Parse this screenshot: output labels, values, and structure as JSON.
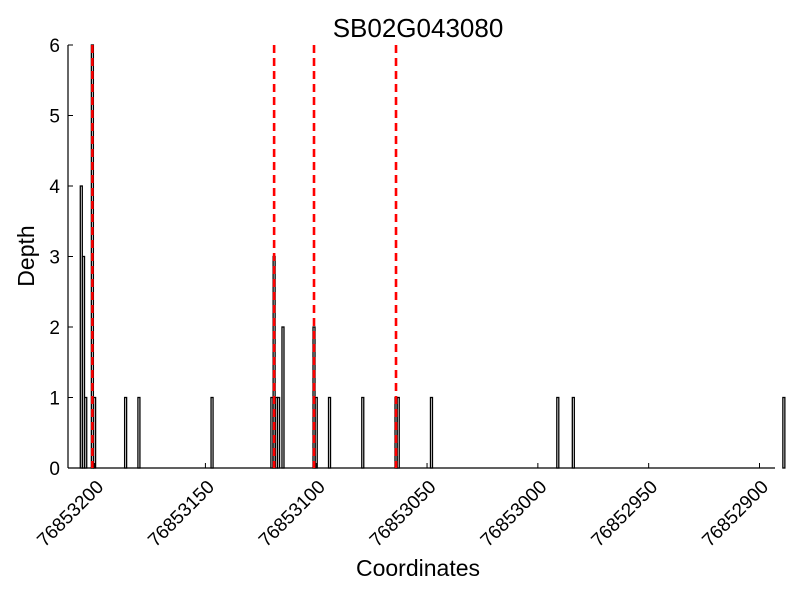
{
  "chart_data": {
    "type": "bar",
    "title": "SB02G043080",
    "xlabel": "Coordinates",
    "ylabel": "Depth",
    "x_reversed": true,
    "xlim": [
      76853212,
      76852893
    ],
    "ylim": [
      0,
      6
    ],
    "xticks": [
      76853200,
      76853150,
      76853100,
      76853050,
      76853000,
      76852950,
      76852900
    ],
    "yticks": [
      0,
      1,
      2,
      3,
      4,
      5,
      6
    ],
    "bars": {
      "x": [
        76853206,
        76853205,
        76853204,
        76853201,
        76853200,
        76853186,
        76853180,
        76853147,
        76853120,
        76853119,
        76853118,
        76853117,
        76853115,
        76853101,
        76853100,
        76853094,
        76853079,
        76853064,
        76853063,
        76853048,
        76852991,
        76852984,
        76852889
      ],
      "values": [
        4,
        3,
        1,
        6,
        1,
        1,
        1,
        1,
        1,
        3,
        1,
        1,
        2,
        2,
        1,
        1,
        1,
        1,
        1,
        1,
        1,
        1,
        1
      ]
    },
    "markers": {
      "x": [
        76853201,
        76853119,
        76853101,
        76853064
      ],
      "color": "#ff0000",
      "style": "dashed"
    },
    "bar_color": "#000000",
    "grid": false,
    "legend": "none"
  }
}
